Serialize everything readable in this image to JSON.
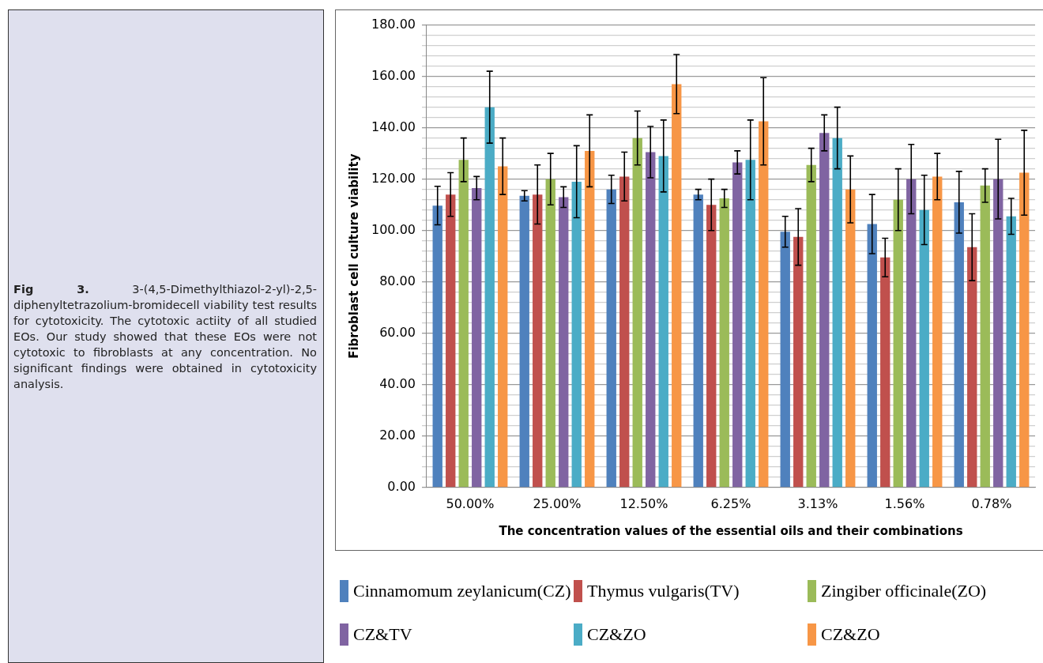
{
  "chart_data": {
    "type": "bar",
    "xlabel": "The concentration values of the essential oils and their combinations",
    "ylabel": "Fibroblast cell culture viability",
    "categories": [
      "50.00%",
      "25.00%",
      "12.50%",
      "6.25%",
      "3.13%",
      "1.56%",
      "0.78%"
    ],
    "series": [
      {
        "name": "Cinnamomum zeylanicum(CZ)",
        "color": "#4f81bd",
        "values": [
          109.7,
          113.5,
          116,
          114,
          99.5,
          102.5,
          111
        ],
        "errors": [
          7.5,
          2,
          5.5,
          2,
          6,
          11.5,
          12
        ]
      },
      {
        "name": "Thymus vulgaris(TV)",
        "color": "#c0504d",
        "values": [
          114,
          114,
          121,
          110,
          97.5,
          89.5,
          93.5
        ],
        "errors": [
          8.5,
          11.5,
          9.5,
          10,
          11,
          7.5,
          13
        ]
      },
      {
        "name": "Zingiber officinale(ZO)",
        "color": "#9bbb59",
        "values": [
          127.5,
          120,
          136,
          112.5,
          125.5,
          112,
          117.5
        ],
        "errors": [
          8.5,
          10,
          10.5,
          3.5,
          6.5,
          12,
          6.5
        ]
      },
      {
        "name": "CZ&TV",
        "color": "#8064a2",
        "values": [
          116.5,
          113,
          130.5,
          126.5,
          138,
          120,
          120
        ],
        "errors": [
          4.5,
          4,
          10,
          4.5,
          7,
          13.5,
          15.5
        ]
      },
      {
        "name": "CZ&ZO",
        "color": "#4bacc6",
        "values": [
          148,
          119,
          129,
          127.5,
          136,
          108,
          105.5
        ],
        "errors": [
          14,
          14,
          14,
          15.5,
          12,
          13.5,
          7
        ]
      },
      {
        "name": "CZ&ZO",
        "color": "#f79646",
        "values": [
          125,
          131,
          157,
          142.5,
          116,
          121,
          122.5
        ],
        "errors": [
          11,
          14,
          11.5,
          17,
          13,
          9,
          16.5
        ]
      }
    ],
    "ylim": [
      0,
      180
    ],
    "yticks": [
      {
        "value": 0,
        "label": "0.00"
      },
      {
        "value": 4,
        "label": null
      },
      {
        "value": 8,
        "label": null
      },
      {
        "value": 12,
        "label": null
      },
      {
        "value": 16,
        "label": null
      },
      {
        "value": 20,
        "label": "20.00"
      },
      {
        "value": 24,
        "label": null
      },
      {
        "value": 28,
        "label": null
      },
      {
        "value": 32,
        "label": null
      },
      {
        "value": 36,
        "label": null
      },
      {
        "value": 40,
        "label": "40.00"
      },
      {
        "value": 44,
        "label": null
      },
      {
        "value": 48,
        "label": null
      },
      {
        "value": 52,
        "label": null
      },
      {
        "value": 56,
        "label": null
      },
      {
        "value": 60,
        "label": "60.00"
      },
      {
        "value": 64,
        "label": null
      },
      {
        "value": 68,
        "label": null
      },
      {
        "value": 72,
        "label": null
      },
      {
        "value": 76,
        "label": null
      },
      {
        "value": 80,
        "label": "80.00"
      },
      {
        "value": 84,
        "label": null
      },
      {
        "value": 88,
        "label": null
      },
      {
        "value": 92,
        "label": null
      },
      {
        "value": 96,
        "label": null
      },
      {
        "value": 100,
        "label": "100.00"
      },
      {
        "value": 104,
        "label": null
      },
      {
        "value": 108,
        "label": null
      },
      {
        "value": 112,
        "label": null
      },
      {
        "value": 116,
        "label": null
      },
      {
        "value": 120,
        "label": "120.00"
      },
      {
        "value": 124,
        "label": null
      },
      {
        "value": 128,
        "label": null
      },
      {
        "value": 132,
        "label": null
      },
      {
        "value": 136,
        "label": null
      },
      {
        "value": 140,
        "label": "140.00"
      },
      {
        "value": 144,
        "label": null
      },
      {
        "value": 148,
        "label": null
      },
      {
        "value": 152,
        "label": null
      },
      {
        "value": 156,
        "label": null
      },
      {
        "value": 160,
        "label": "160.00"
      },
      {
        "value": 164,
        "label": null
      },
      {
        "value": 168,
        "label": null
      },
      {
        "value": 172,
        "label": null
      },
      {
        "value": 176,
        "label": null
      },
      {
        "value": 180,
        "label": "180.00"
      }
    ],
    "grid": "y",
    "legend": "bottom",
    "annotations": [
      "Fig 3. 3-(4,5-Dimethylthiazol-2-yl)-2,5-diphenyltetrazolium-bromidecell viability test results for cytotoxicity. The cytotoxic actiity of all studied EOs. Our study showed that these EOs were not cytotoxic to fibroblasts at any concentration. No significant findings were obtained in cytotoxicity analysis."
    ]
  }
}
